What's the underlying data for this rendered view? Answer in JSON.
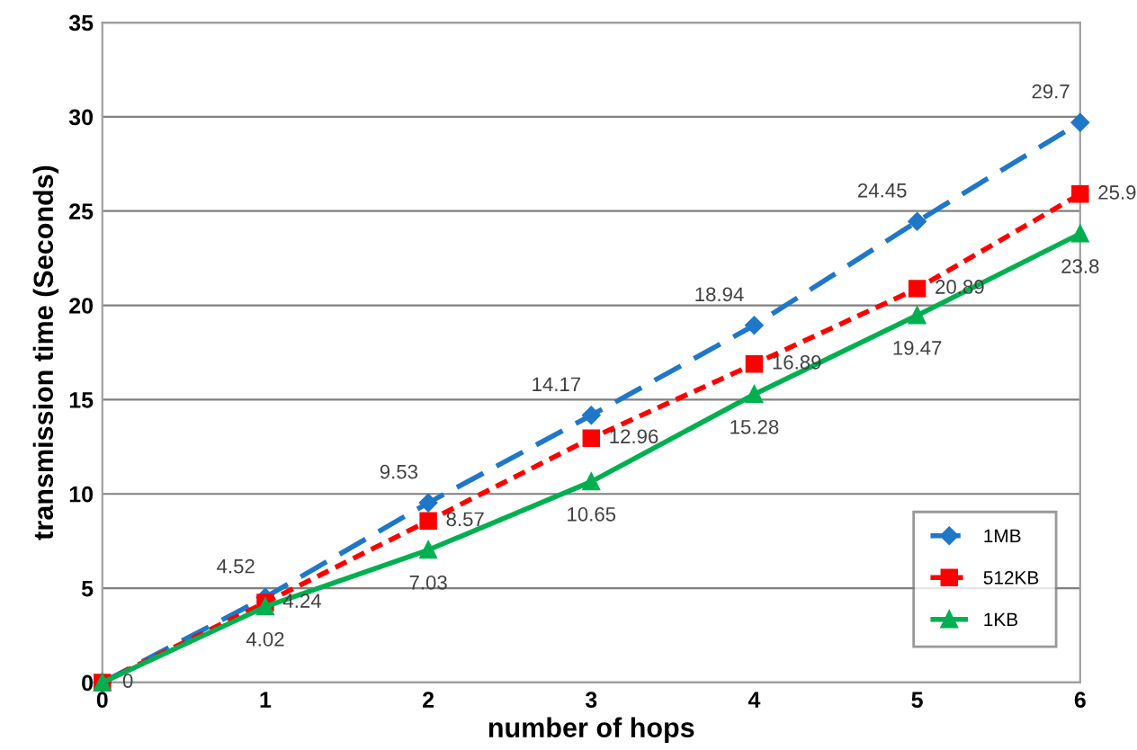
{
  "chart_data": {
    "type": "line",
    "xlabel": "number of hops",
    "ylabel": "transmission time (Seconds)",
    "x": [
      0,
      1,
      2,
      3,
      4,
      5,
      6
    ],
    "series": [
      {
        "name": "1MB",
        "color": "#1f77c8",
        "values": [
          0,
          4.52,
          9.53,
          14.17,
          18.94,
          24.45,
          29.7
        ],
        "value_labels": [
          null,
          "4.52",
          "9.53",
          "14.17",
          "18.94",
          "24.45",
          "29.7"
        ],
        "marker": "diamond",
        "line_style": "dashed"
      },
      {
        "name": "512KB",
        "color": "#ff0000",
        "values": [
          0,
          4.24,
          8.57,
          12.96,
          16.89,
          20.89,
          25.9
        ],
        "value_labels": [
          null,
          "4.24",
          "8.57",
          "12.96",
          "16.89",
          "20.89",
          "25.9"
        ],
        "marker": "square",
        "line_style": "dotted"
      },
      {
        "name": "1KB",
        "color": "#00b050",
        "values": [
          0,
          4.02,
          7.03,
          10.65,
          15.28,
          19.47,
          23.8
        ],
        "value_labels": [
          "0",
          "4.02",
          "7.03",
          "10.65",
          "15.28",
          "19.47",
          "23.8"
        ],
        "marker": "triangle",
        "line_style": "solid"
      }
    ],
    "xlim": [
      0,
      6
    ],
    "xticks": [
      0,
      1,
      2,
      3,
      4,
      5,
      6
    ],
    "ylim": [
      0,
      35
    ],
    "yticks": [
      0,
      5,
      10,
      15,
      20,
      25,
      30,
      35
    ],
    "grid": "y",
    "legend": "bottom right"
  }
}
